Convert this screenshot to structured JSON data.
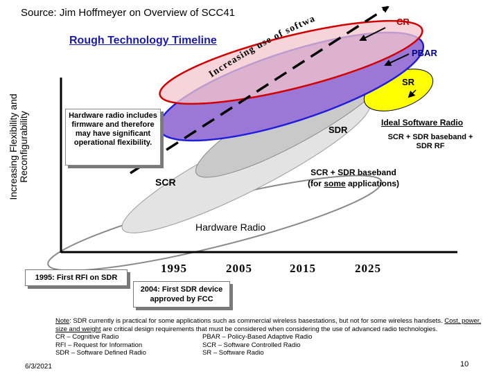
{
  "source": "Source: Jim Hoffmeyer on Overview of SCC41",
  "timeline_title": "Rough Technology Timeline",
  "y_axis_label": "Increasing Flexibility and Reconfigurability",
  "curved_text": "Increasing use of software in advanced radios",
  "hardware_callout": "Hardware radio includes firmware and therefore may have significant operational flexibility.",
  "regions": {
    "cr": "CR",
    "pbar": "PBAR",
    "sr": "SR",
    "sdr": "SDR",
    "scr": "SCR",
    "hardware": "Hardware Radio"
  },
  "ideal_label": "Ideal Software Radio",
  "sr_desc": "SCR + SDR baseband + SDR RF",
  "scr_sdr_line1": "SCR + SDR baseband",
  "scr_sdr_line2_pre": "(for ",
  "scr_sdr_line2_u": "some",
  "scr_sdr_line2_post": " applications)",
  "years": [
    "1995",
    "2005",
    "2015",
    "2025"
  ],
  "box_1995": "1995: First RFI on SDR",
  "box_2004": "2004: First SDR device approved by FCC",
  "note_label": "Note",
  "note_text_1": ":  SDR currently is practical for some applications such as commercial wireless basestations, but not for some wireless handsets. ",
  "note_emph": "Cost, power, size and weight",
  "note_text_2": " are critical design requirements that must be considered when considering the use of advanced radio technologies.",
  "glossary": [
    [
      "CR – Cognitive Radio",
      "PBAR – Policy-Based Adaptive Radio"
    ],
    [
      "RFI – Request for Information",
      "SCR – Software Controlled Radio"
    ],
    [
      "SDR – Software Defined Radio",
      "SR – Software Radio"
    ]
  ],
  "date": "6/3/2021",
  "page_number": "10",
  "colors": {
    "cr_fill": "#f3c6cc",
    "cr_stroke": "#d00000",
    "pbar_fill": "#9b77d6",
    "pbar_stroke": "#1f1fd8",
    "sr_fill": "#ffff00",
    "sdr_fill": "#c9c9c9",
    "timeline_title": "#1a1ab0"
  }
}
